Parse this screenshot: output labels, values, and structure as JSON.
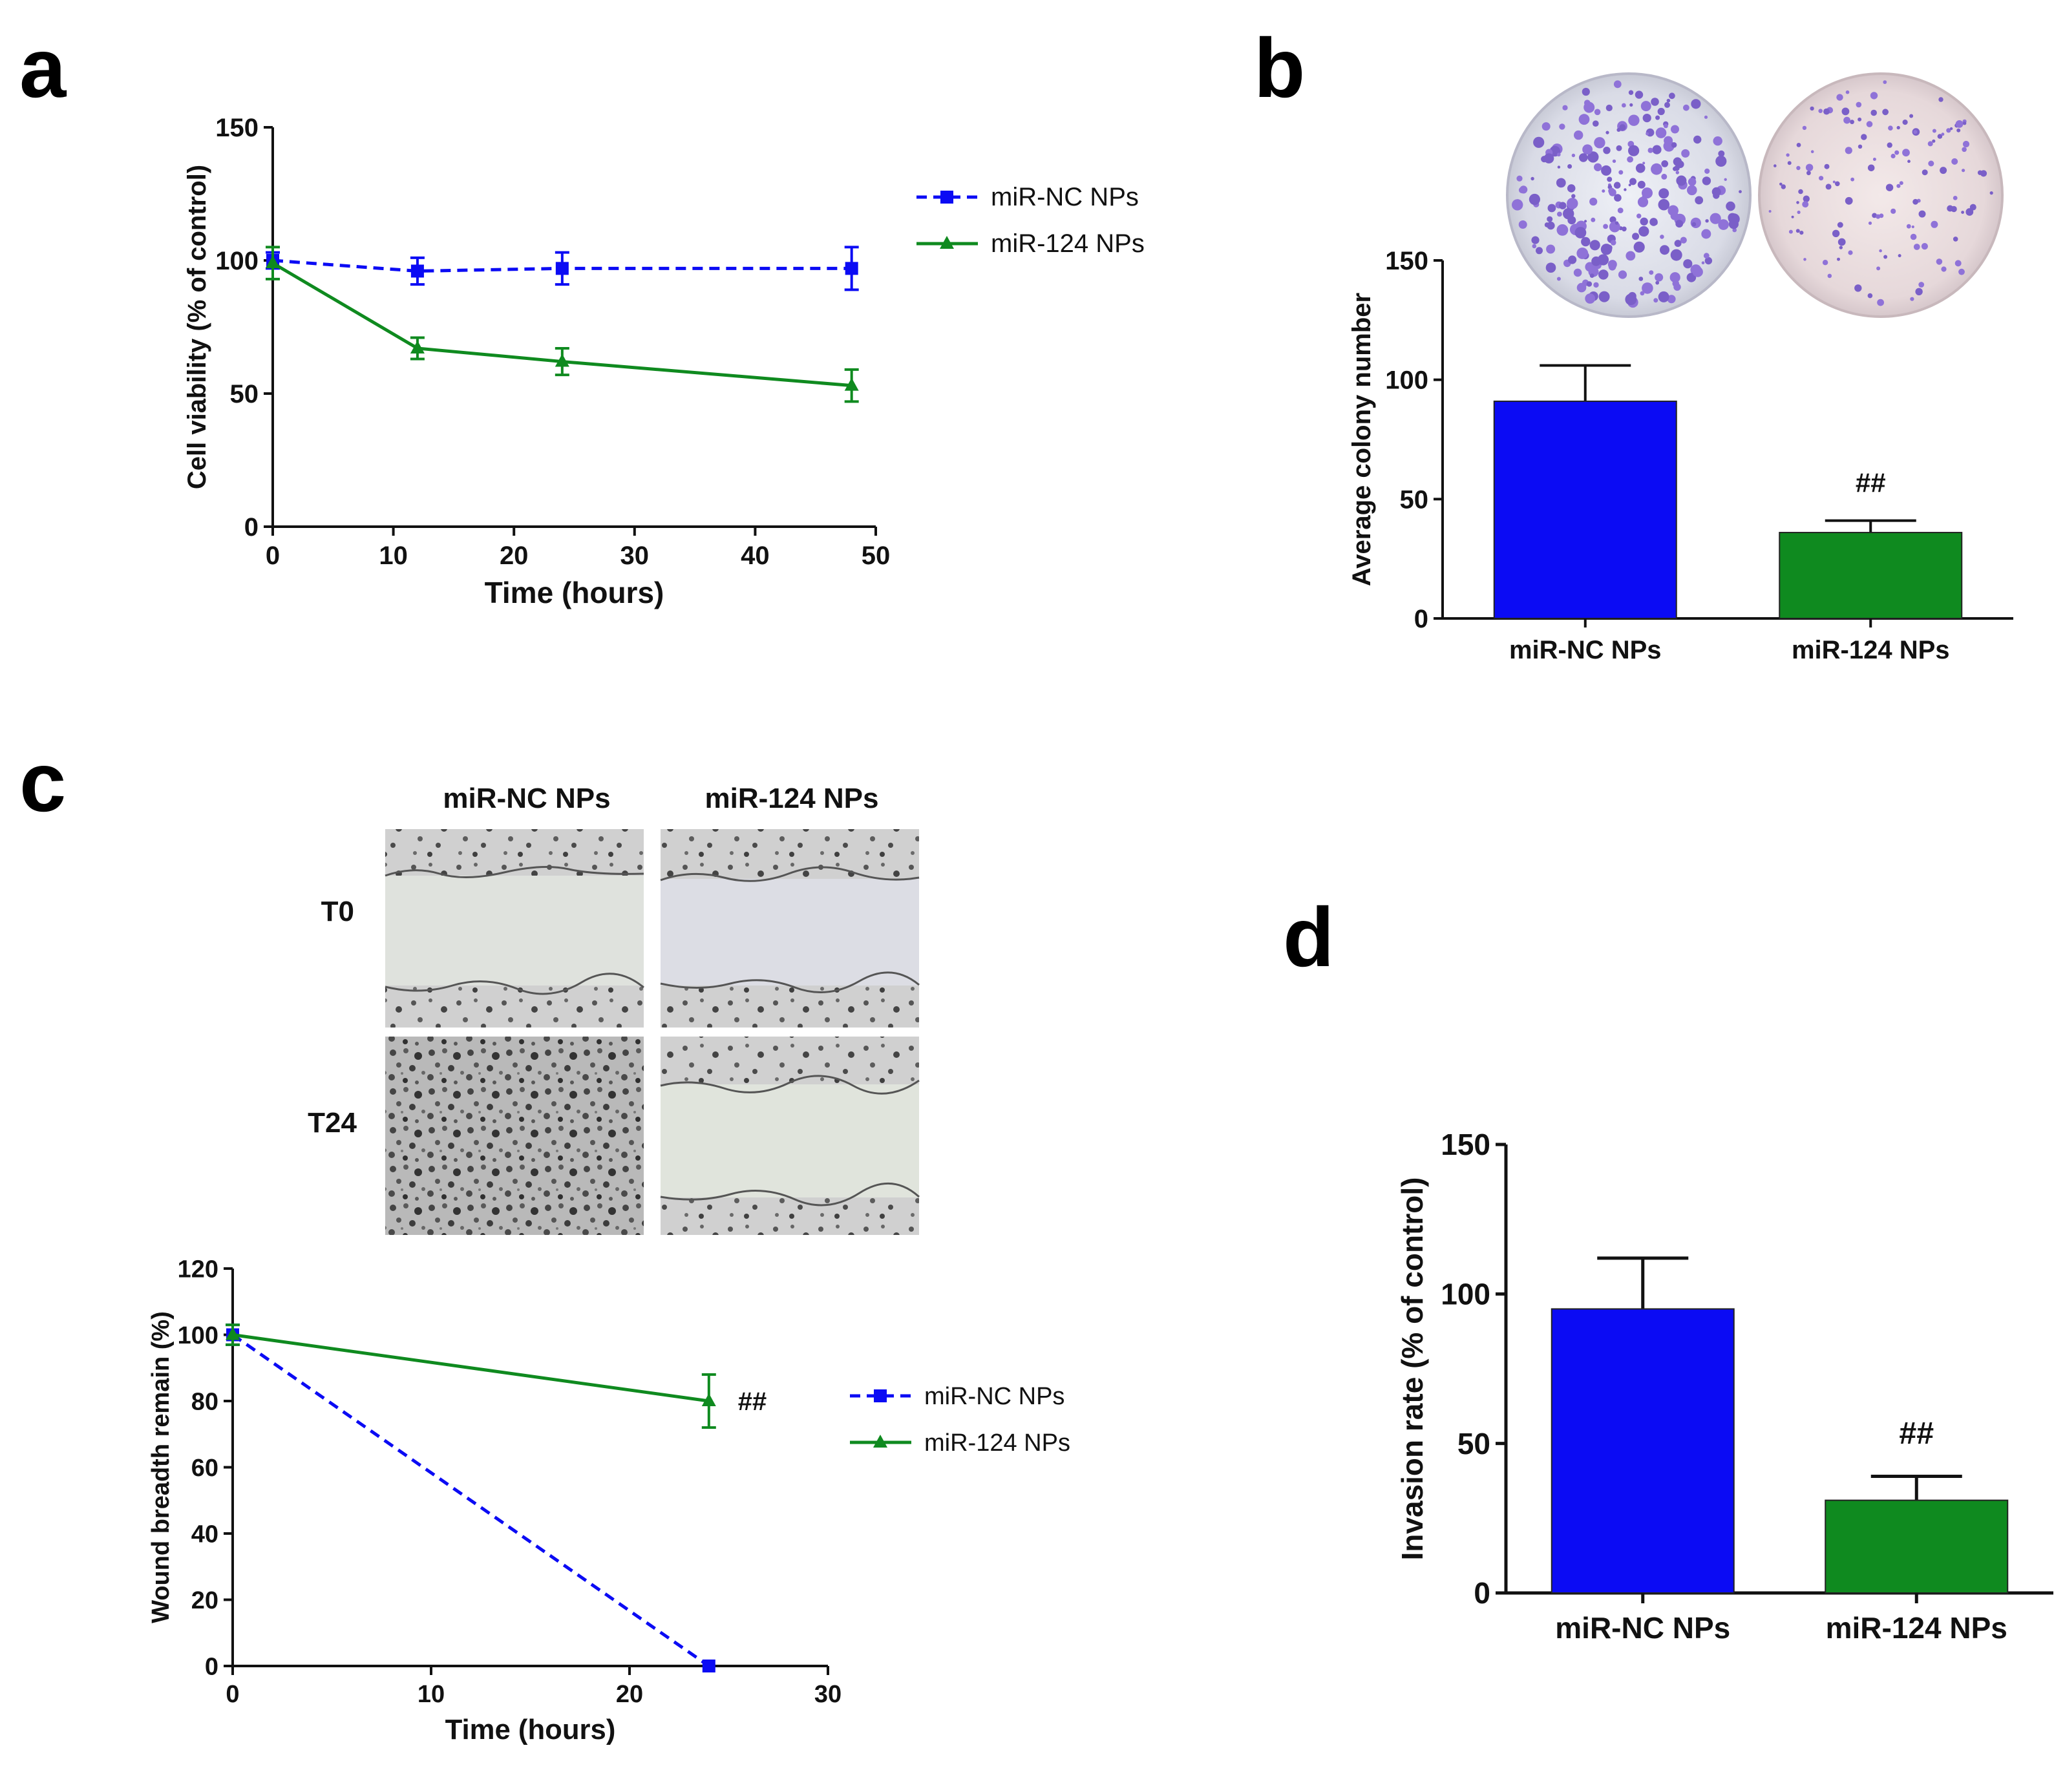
{
  "panel_labels": [
    "a",
    "b",
    "c",
    "d"
  ],
  "colors": {
    "nc": "#0b0bf4",
    "m124": "#0f8a1f",
    "axis": "#111111"
  },
  "chart_data": [
    {
      "id": "a",
      "type": "line",
      "xlabel": "Time (hours)",
      "ylabel": "Cell viability (% of control)",
      "xlim": [
        0,
        50
      ],
      "ylim": [
        0,
        150
      ],
      "xticks": [
        0,
        10,
        20,
        30,
        40,
        50
      ],
      "yticks": [
        0,
        50,
        100,
        150
      ],
      "legend_position": "top-right",
      "series": [
        {
          "name": "miR-NC NPs",
          "color": "#0b0bf4",
          "dashed": true,
          "marker": "square",
          "x": [
            0,
            12,
            24,
            48
          ],
          "y": [
            100,
            96,
            97,
            97
          ],
          "err": [
            3,
            5,
            6,
            8
          ]
        },
        {
          "name": "miR-124 NPs",
          "color": "#0f8a1f",
          "dashed": false,
          "marker": "triangle",
          "x": [
            0,
            12,
            24,
            48
          ],
          "y": [
            99,
            67,
            62,
            53
          ],
          "err": [
            6,
            4,
            5,
            6
          ]
        }
      ]
    },
    {
      "id": "b",
      "type": "bar",
      "xlabel": "",
      "ylabel": "Average colony number",
      "ylim": [
        0,
        150
      ],
      "yticks": [
        0,
        50,
        100,
        150
      ],
      "categories": [
        "miR-NC NPs",
        "miR-124 NPs"
      ],
      "values": [
        91,
        36
      ],
      "err": [
        15,
        5
      ],
      "bar_colors": [
        "#0b0bf4",
        "#0f8a1f"
      ],
      "annotations": [
        {
          "category": "miR-124 NPs",
          "text": "##"
        }
      ]
    },
    {
      "id": "c",
      "type": "line",
      "xlabel": "Time (hours)",
      "ylabel": "Wound breadth remain (%)",
      "xlim": [
        0,
        30
      ],
      "ylim": [
        0,
        120
      ],
      "xticks": [
        0,
        10,
        20,
        30
      ],
      "yticks": [
        0,
        20,
        40,
        60,
        80,
        100,
        120
      ],
      "legend_position": "right",
      "series": [
        {
          "name": "miR-NC NPs",
          "color": "#0b0bf4",
          "dashed": true,
          "marker": "square",
          "x": [
            0,
            24
          ],
          "y": [
            100,
            0
          ],
          "err": [
            3,
            0
          ]
        },
        {
          "name": "miR-124 NPs",
          "color": "#0f8a1f",
          "dashed": false,
          "marker": "triangle",
          "x": [
            0,
            24
          ],
          "y": [
            100,
            80
          ],
          "err": [
            3,
            8
          ]
        }
      ],
      "annotations": [
        {
          "x": 24,
          "y": 80,
          "text": "##"
        }
      ]
    },
    {
      "id": "d",
      "type": "bar",
      "xlabel": "",
      "ylabel": "Invasion rate (% of control)",
      "ylim": [
        0,
        150
      ],
      "yticks": [
        0,
        50,
        100,
        150
      ],
      "categories": [
        "miR-NC NPs",
        "miR-124 NPs"
      ],
      "values": [
        95,
        31
      ],
      "err": [
        17,
        8
      ],
      "bar_colors": [
        "#0b0bf4",
        "#0f8a1f"
      ],
      "annotations": [
        {
          "category": "miR-124 NPs",
          "text": "##"
        }
      ]
    }
  ],
  "micrographs": {
    "column_labels": [
      "miR-NC NPs",
      "miR-124 NPs"
    ],
    "row_labels": [
      "T0",
      "T24"
    ]
  }
}
